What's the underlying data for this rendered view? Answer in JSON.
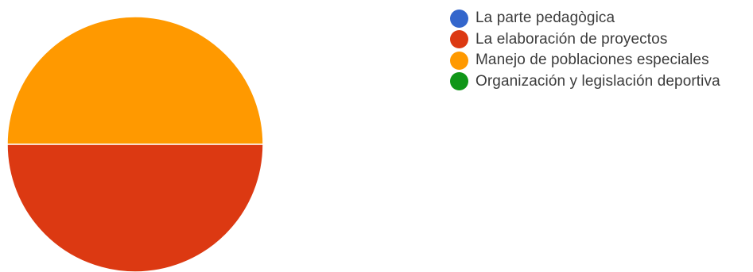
{
  "chart_data": {
    "type": "pie",
    "title": "",
    "slices": [
      {
        "label": "La parte pedagògica",
        "value": 0,
        "color": "#3366CC"
      },
      {
        "label": "La elaboración de proyectos",
        "value": 50,
        "color": "#DC3912"
      },
      {
        "label": "Manejo de poblaciones especiales",
        "value": 50,
        "color": "#FF9900"
      },
      {
        "label": "Organización y legislación deportiva",
        "value": 0,
        "color": "#109618"
      }
    ],
    "legend_position": "right"
  }
}
